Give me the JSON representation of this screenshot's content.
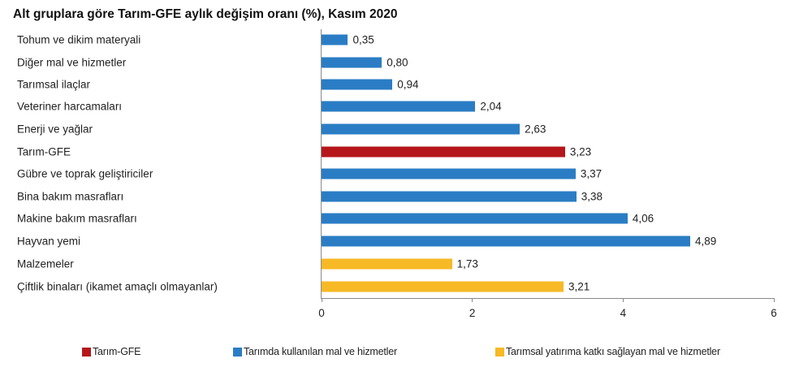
{
  "title": "Alt gruplara göre Tarım-GFE aylık değişim oranı (%), Kasım 2020",
  "colors": {
    "Tarım-GFE": "#B5161B",
    "Tarımda kullanılan mal ve hizmetler": "#2A7DC4",
    "Tarımsal yatırıma katkı sağlayan mal ve hizmetler": "#F7B925"
  },
  "chart_data": {
    "type": "bar",
    "orientation": "horizontal",
    "title": "Alt gruplara göre Tarım-GFE aylık değişim oranı (%), Kasım 2020",
    "xlabel": "",
    "ylabel": "",
    "xlim": [
      0,
      6
    ],
    "x_ticks": [
      "0",
      "2",
      "4",
      "6"
    ],
    "grid": false,
    "legend_position": "bottom",
    "categories": [
      "Tohum ve dikim materyali",
      "Diğer mal ve hizmetler",
      "Tarımsal ilaçlar",
      "Veteriner harcamaları",
      "Enerji  ve yağlar",
      "Tarım-GFE",
      "Gübre ve toprak geliştiriciler",
      "Bina bakım masrafları",
      "Makine bakım masrafları",
      "Hayvan yemi",
      "Malzemeler",
      "Çiftlik binaları (ikamet amaçlı olmayanlar)"
    ],
    "values": [
      0.35,
      0.8,
      0.94,
      2.04,
      2.63,
      3.23,
      3.37,
      3.38,
      4.06,
      4.89,
      1.73,
      3.21
    ],
    "value_labels": [
      "0,35",
      "0,80",
      "0,94",
      "2,04",
      "2,63",
      "3,23",
      "3,37",
      "3,38",
      "4,06",
      "4,89",
      "1,73",
      "3,21"
    ],
    "groups": [
      "Tarımda kullanılan mal ve hizmetler",
      "Tarımda kullanılan mal ve hizmetler",
      "Tarımda kullanılan mal ve hizmetler",
      "Tarımda kullanılan mal ve hizmetler",
      "Tarımda kullanılan mal ve hizmetler",
      "Tarım-GFE",
      "Tarımda kullanılan mal ve hizmetler",
      "Tarımda kullanılan mal ve hizmetler",
      "Tarımda kullanılan mal ve hizmetler",
      "Tarımda kullanılan mal ve hizmetler",
      "Tarımsal yatırıma katkı sağlayan mal ve hizmetler",
      "Tarımsal yatırıma katkı sağlayan mal ve hizmetler"
    ],
    "legend": [
      "Tarım-GFE",
      "Tarımda kullanılan mal ve hizmetler",
      "Tarımsal yatırıma katkı sağlayan mal ve hizmetler"
    ]
  }
}
